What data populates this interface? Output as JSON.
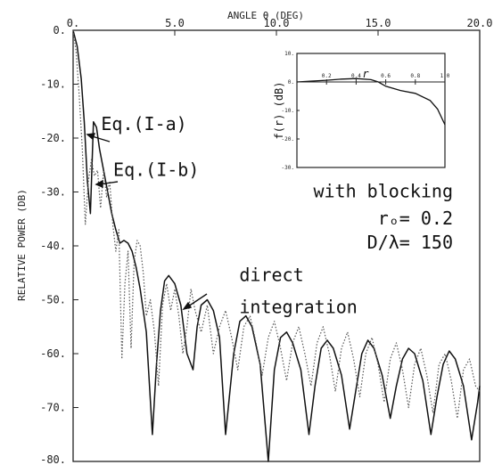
{
  "chart_data": [
    {
      "type": "line",
      "xlabel": "ANGLE θ (DEG)",
      "ylabel": "RELATIVE POWER (DB)",
      "xlim": [
        0,
        20
      ],
      "ylim": [
        -80,
        0
      ],
      "x_ticks": [
        "0.",
        "5.0",
        "10.0",
        "15.0",
        "20.0"
      ],
      "y_ticks": [
        "0.",
        "-10.",
        "-20.",
        "-30.",
        "-40.",
        "-50.",
        "-60.",
        "-70.",
        "-80."
      ],
      "x_tick_values": [
        0,
        5,
        10,
        15,
        20
      ],
      "y_tick_values": [
        0,
        -10,
        -20,
        -30,
        -40,
        -50,
        -60,
        -70,
        -80
      ],
      "grid": false,
      "series": [
        {
          "name": "Eq. (I-a)",
          "style": "solid",
          "x": [
            0.0,
            0.2,
            0.4,
            0.55,
            0.7,
            0.85,
            1.0,
            1.15,
            1.3,
            1.5,
            1.7,
            1.9,
            2.1,
            2.3,
            2.5,
            2.7,
            2.9,
            3.1,
            3.3,
            3.6,
            3.9,
            4.1,
            4.3,
            4.5,
            4.7,
            5.0,
            5.3,
            5.6,
            5.9,
            6.1,
            6.3,
            6.6,
            6.9,
            7.2,
            7.5,
            7.9,
            8.2,
            8.5,
            8.8,
            9.2,
            9.6,
            9.9,
            10.2,
            10.5,
            10.8,
            11.2,
            11.6,
            11.9,
            12.2,
            12.5,
            12.8,
            13.2,
            13.6,
            13.9,
            14.2,
            14.5,
            14.8,
            15.2,
            15.6,
            15.9,
            16.2,
            16.5,
            16.8,
            17.2,
            17.6,
            17.9,
            18.2,
            18.5,
            18.8,
            19.2,
            19.6,
            19.9,
            20.0
          ],
          "y": [
            0,
            -3,
            -9,
            -17,
            -28,
            -34,
            -17,
            -18,
            -22,
            -26,
            -30,
            -34,
            -37,
            -39.5,
            -39,
            -39.5,
            -41,
            -44,
            -48,
            -56,
            -75,
            -62,
            -52,
            -46.5,
            -45.5,
            -47,
            -51,
            -60,
            -63,
            -55,
            -51,
            -50,
            -52,
            -57,
            -75,
            -60,
            -54,
            -53,
            -55,
            -62,
            -80,
            -63,
            -57,
            -56,
            -58,
            -63,
            -75,
            -66,
            -59,
            -57.5,
            -59,
            -64,
            -74,
            -67,
            -60,
            -57.5,
            -59,
            -64,
            -72,
            -66,
            -61,
            -59,
            -60,
            -65,
            -75,
            -68,
            -62,
            -59.5,
            -61,
            -66,
            -76,
            -69,
            -66
          ]
        },
        {
          "name": "Eq. (I-b)",
          "style": "dotted",
          "x": [
            0.0,
            0.15,
            0.3,
            0.45,
            0.6,
            0.75,
            0.9,
            1.05,
            1.2,
            1.35,
            1.5,
            1.65,
            1.8,
            1.95,
            2.1,
            2.25,
            2.4,
            2.55,
            2.7,
            2.85,
            3.0,
            3.15,
            3.3,
            3.45,
            3.6,
            3.8,
            4.0,
            4.2,
            4.4,
            4.6,
            4.8,
            5.0,
            5.2,
            5.4,
            5.6,
            5.8,
            6.0,
            6.3,
            6.6,
            6.9,
            7.2,
            7.5,
            7.8,
            8.1,
            8.4,
            8.7,
            9.0,
            9.3,
            9.6,
            9.9,
            10.2,
            10.5,
            10.8,
            11.1,
            11.4,
            11.7,
            12.0,
            12.3,
            12.6,
            12.9,
            13.2,
            13.5,
            13.8,
            14.1,
            14.4,
            14.7,
            15.0,
            15.3,
            15.6,
            15.9,
            16.2,
            16.5,
            16.8,
            17.1,
            17.4,
            17.7,
            18.0,
            18.3,
            18.6,
            18.9,
            19.2,
            19.5,
            19.8,
            20.0
          ],
          "y": [
            0,
            -4,
            -12,
            -22,
            -36,
            -28,
            -24,
            -27,
            -26,
            -33,
            -26,
            -31,
            -28,
            -36,
            -41,
            -37,
            -61,
            -47,
            -41,
            -59,
            -43,
            -39,
            -40,
            -45,
            -53,
            -50,
            -56,
            -66,
            -51,
            -47,
            -52,
            -48,
            -53,
            -60,
            -55,
            -48,
            -52,
            -56,
            -51,
            -60,
            -55,
            -52,
            -57,
            -63,
            -55,
            -53,
            -58,
            -64,
            -57,
            -54,
            -59,
            -65,
            -58,
            -55,
            -60,
            -66,
            -58,
            -55,
            -60,
            -67,
            -59,
            -56,
            -61,
            -68,
            -60,
            -57,
            -62,
            -69,
            -61,
            -58,
            -63,
            -70,
            -62,
            -59,
            -64,
            -71,
            -62,
            -60,
            -65,
            -72,
            -63,
            -61,
            -66,
            -67
          ]
        }
      ],
      "annotations": [
        {
          "text": "Eq.(I-a)",
          "x": 1.2,
          "y": -18.5
        },
        {
          "text": "Eq.(I-b)",
          "x": 1.8,
          "y": -27
        },
        {
          "text": "with blocking",
          "x": 20,
          "y": -31
        },
        {
          "text": "rₒ= 0.2",
          "x": 20,
          "y": -36
        },
        {
          "text": "D/λ= 150",
          "x": 20,
          "y": -40.5
        },
        {
          "text": "direct",
          "x": 8,
          "y": -46.5
        },
        {
          "text": "integration",
          "x": 8,
          "y": -52.5
        }
      ]
    },
    {
      "type": "line",
      "inset": true,
      "xlabel": "r",
      "ylabel": "f(r)  (dB)",
      "xlim": [
        0,
        1
      ],
      "ylim": [
        -30,
        10
      ],
      "x_ticks": [
        "0.2",
        "0.4",
        "0.6",
        "0.8",
        "1.0"
      ],
      "y_ticks": [
        "10.",
        "0.",
        "-10.",
        "-20.",
        "-30."
      ],
      "x_tick_values": [
        0.2,
        0.4,
        0.6,
        0.8,
        1.0
      ],
      "y_tick_values": [
        10,
        0,
        -10,
        -20,
        -30
      ],
      "series": [
        {
          "name": "",
          "x": [
            0.0,
            0.1,
            0.2,
            0.3,
            0.4,
            0.5,
            0.55,
            0.6,
            0.7,
            0.8,
            0.9,
            0.95,
            1.0
          ],
          "y": [
            0.0,
            0.3,
            0.6,
            1.0,
            1.2,
            0.8,
            0.0,
            -1.5,
            -3.0,
            -4.0,
            -6.5,
            -9.5,
            -15.0
          ]
        }
      ]
    }
  ]
}
